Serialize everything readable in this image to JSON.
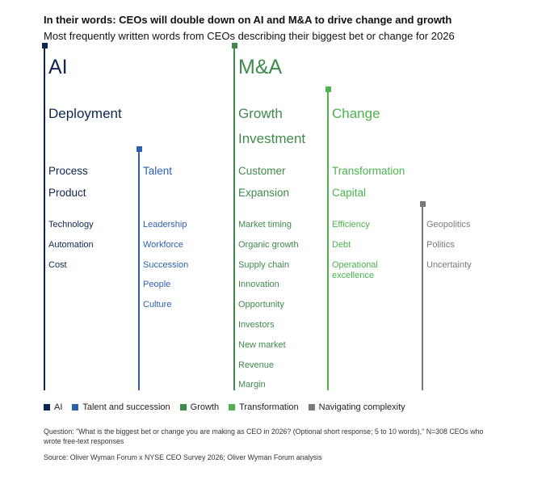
{
  "title": "In their words: CEOs will double down on AI and M&A to drive change and growth",
  "subtitle": "Most frequently written words from CEOs describing their biggest bet or change for 2026",
  "chart_data": {
    "type": "table",
    "columns": [
      {
        "series": "AI",
        "color": "#0d2750",
        "words": [
          {
            "text": "AI",
            "tier": 1
          },
          {
            "text": "Deployment",
            "tier": 2
          },
          {
            "text": "Process",
            "tier": 3
          },
          {
            "text": "Product",
            "tier": 3
          },
          {
            "text": "Technology",
            "tier": 4
          },
          {
            "text": "Automation",
            "tier": 4
          },
          {
            "text": "Cost",
            "tier": 4
          }
        ]
      },
      {
        "series": "Talent and succession",
        "color": "#2c5fb3",
        "words": [
          {
            "text": "Talent",
            "tier": 3
          },
          {
            "text": "Leadership",
            "tier": 4
          },
          {
            "text": "Workforce",
            "tier": 4
          },
          {
            "text": "Succession",
            "tier": 4
          },
          {
            "text": "People",
            "tier": 4
          },
          {
            "text": "Culture",
            "tier": 4
          }
        ]
      },
      {
        "series": "Growth",
        "color": "#3f8a4b",
        "words": [
          {
            "text": "M&A",
            "tier": 1
          },
          {
            "text": "Growth",
            "tier": 2
          },
          {
            "text": "Investment",
            "tier": 2
          },
          {
            "text": "Customer",
            "tier": 3
          },
          {
            "text": "Expansion",
            "tier": 3
          },
          {
            "text": "Market timing",
            "tier": 4
          },
          {
            "text": "Organic growth",
            "tier": 4
          },
          {
            "text": "Supply chain",
            "tier": 4
          },
          {
            "text": "Innovation",
            "tier": 4
          },
          {
            "text": "Opportunity",
            "tier": 4
          },
          {
            "text": "Investors",
            "tier": 4
          },
          {
            "text": "New market",
            "tier": 4
          },
          {
            "text": "Revenue",
            "tier": 4
          },
          {
            "text": "Margin",
            "tier": 4
          }
        ]
      },
      {
        "series": "Transformation",
        "color": "#4cb34e",
        "words": [
          {
            "text": "Change",
            "tier": 2
          },
          {
            "text": "Transformation",
            "tier": 3
          },
          {
            "text": "Capital",
            "tier": 3
          },
          {
            "text": "Efficiency",
            "tier": 4
          },
          {
            "text": "Debt",
            "tier": 4
          },
          {
            "text": "Operational excellence",
            "tier": 4
          }
        ]
      },
      {
        "series": "Navigating complexity",
        "color": "#7a7a7a",
        "words": [
          {
            "text": "Geopolitics",
            "tier": 4
          },
          {
            "text": "Politics",
            "tier": 4
          },
          {
            "text": "Uncertainty",
            "tier": 4
          }
        ]
      }
    ],
    "legend": [
      "AI",
      "Talent and succession",
      "Growth",
      "Transformation",
      "Navigating complexity"
    ],
    "legend_position": "bottom-left"
  },
  "note": "Question: \"What is the biggest bet or change you are making as CEO in 2026? (Optional short response; 5 to 10 words),\" N=308 CEOs who wrote free-text responses",
  "source": "Source: Oliver Wyman Forum x NYSE CEO Survey 2026; Oliver Wyman Forum analysis"
}
